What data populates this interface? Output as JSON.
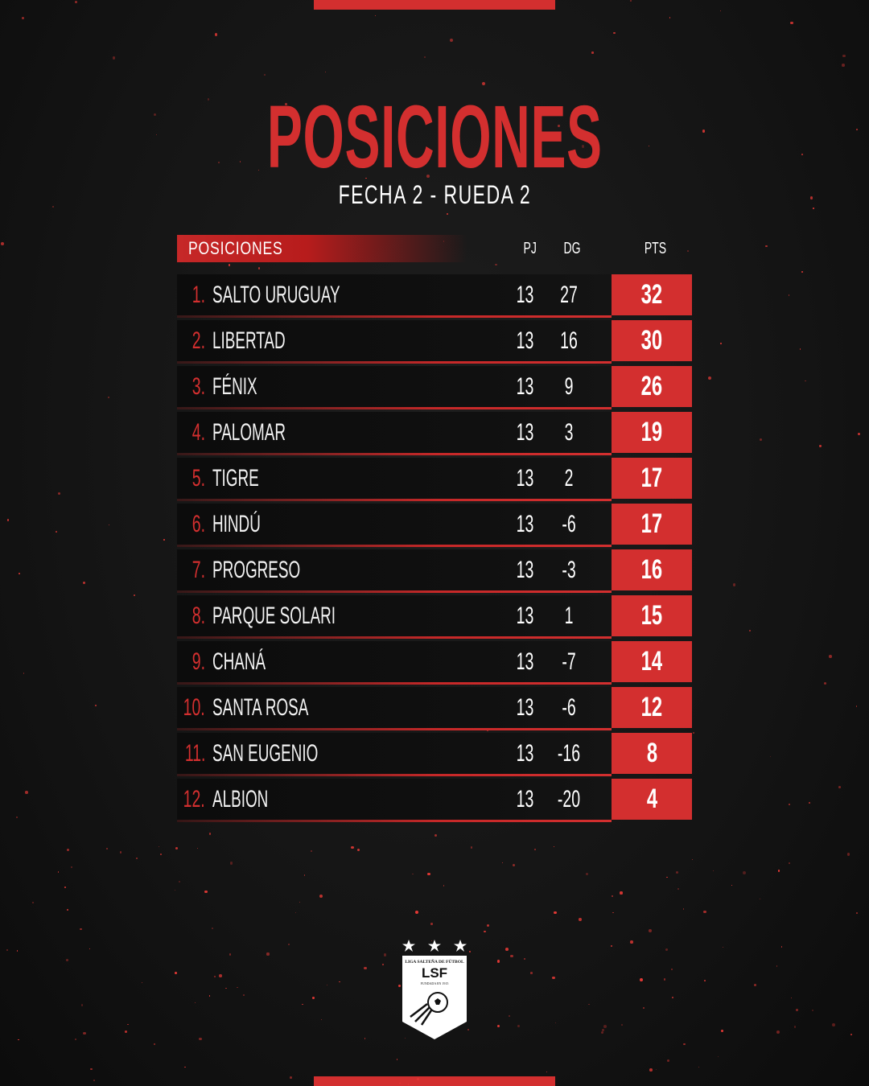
{
  "title": "POSICIONES",
  "subtitle": "FECHA 2 - RUEDA 2",
  "table": {
    "header": {
      "label": "POSICIONES",
      "pj": "PJ",
      "dg": "DG",
      "pts": "PTS"
    },
    "rows": [
      {
        "pos": "1.",
        "team": "SALTO URUGUAY",
        "pj": "13",
        "dg": "27",
        "pts": "32"
      },
      {
        "pos": "2.",
        "team": "LIBERTAD",
        "pj": "13",
        "dg": "16",
        "pts": "30"
      },
      {
        "pos": "3.",
        "team": "FÉNIX",
        "pj": "13",
        "dg": "9",
        "pts": "26"
      },
      {
        "pos": "4.",
        "team": "PALOMAR",
        "pj": "13",
        "dg": "3",
        "pts": "19"
      },
      {
        "pos": "5.",
        "team": "TIGRE",
        "pj": "13",
        "dg": "2",
        "pts": "17"
      },
      {
        "pos": "6.",
        "team": "HINDÚ",
        "pj": "13",
        "dg": "-6",
        "pts": "17"
      },
      {
        "pos": "7.",
        "team": "PROGRESO",
        "pj": "13",
        "dg": "-3",
        "pts": "16"
      },
      {
        "pos": "8.",
        "team": "PARQUE SOLARI",
        "pj": "13",
        "dg": "1",
        "pts": "15"
      },
      {
        "pos": "9.",
        "team": "CHANÁ",
        "pj": "13",
        "dg": "-7",
        "pts": "14"
      },
      {
        "pos": "10.",
        "team": "SANTA ROSA",
        "pj": "13",
        "dg": "-6",
        "pts": "12"
      },
      {
        "pos": "11.",
        "team": "SAN EUGENIO",
        "pj": "13",
        "dg": "-16",
        "pts": "8"
      },
      {
        "pos": "12.",
        "team": "ALBION",
        "pj": "13",
        "dg": "-20",
        "pts": "4"
      }
    ]
  },
  "logo": {
    "text_top": "LIGA SALTEÑA DE FÚTBOL",
    "abbr": "LSF",
    "text_bottom": "FUNDADA EN 1915",
    "stars": 3
  },
  "colors": {
    "accent": "#d32f2f",
    "background": "#141414",
    "row": "#0c0c0c"
  }
}
